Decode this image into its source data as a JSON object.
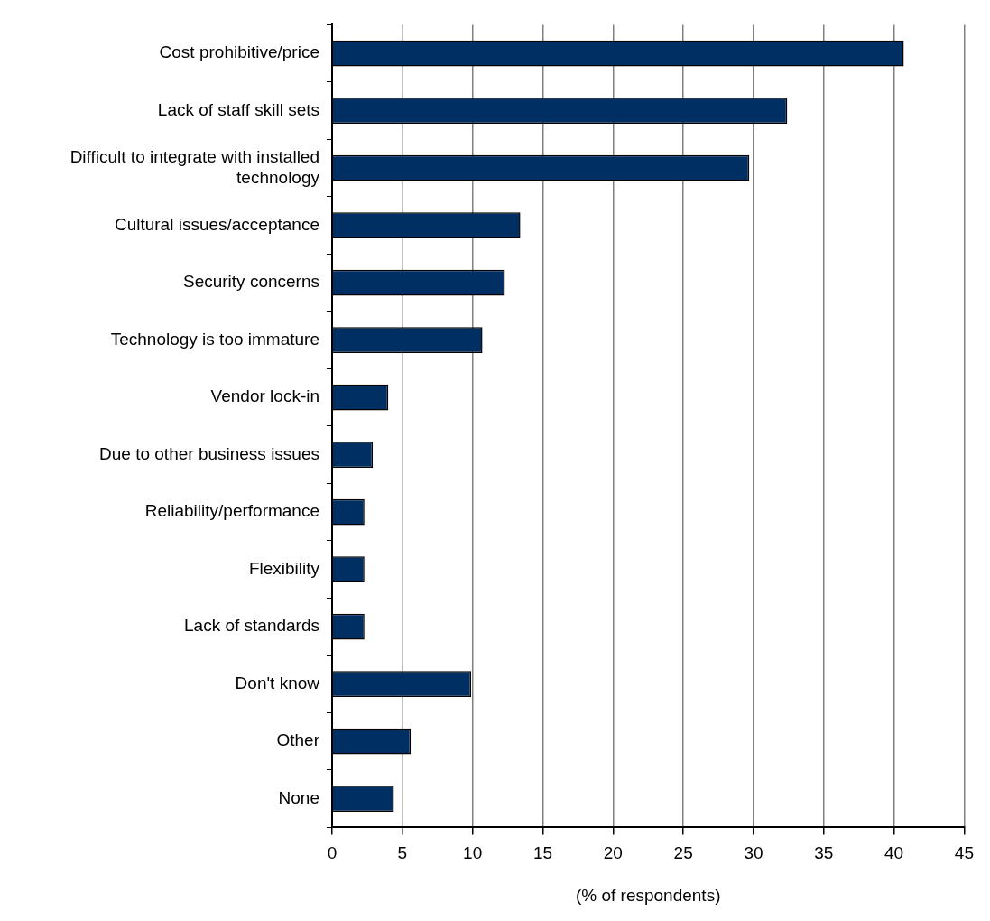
{
  "chart_data": {
    "type": "bar",
    "orientation": "horizontal",
    "xlabel": "(% of respondents)",
    "categories": [
      "Cost prohibitive/price",
      "Lack of staff skill sets",
      "Difficult to integrate with installed technology",
      "Cultural issues/acceptance",
      "Security concerns",
      "Technology is too immature",
      "Vendor lock-in",
      "Due to other business issues",
      "Reliability/performance",
      "Flexibility",
      "Lack of standards",
      "Don't know",
      "Other",
      "None"
    ],
    "values": [
      40.7,
      32.4,
      29.7,
      13.4,
      12.3,
      10.7,
      4.0,
      2.9,
      2.3,
      2.3,
      2.3,
      9.9,
      5.6,
      4.4
    ],
    "color": "#003063",
    "xlim": [
      0,
      45
    ],
    "xticks": [
      0,
      5,
      10,
      15,
      20,
      25,
      30,
      35,
      40,
      45
    ],
    "grid": "x",
    "legend": false
  }
}
